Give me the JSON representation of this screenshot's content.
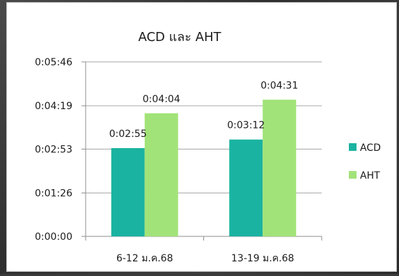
{
  "chart_data": {
    "type": "bar",
    "title": "ACD และ AHT",
    "categories": [
      "6-12 ม.ค.68",
      "13-19 ม.ค.68"
    ],
    "series": [
      {
        "name": "ACD",
        "values": [
          175,
          192
        ],
        "labels": [
          "0:02:55",
          "0:03:12"
        ],
        "color": "#1ab3a1"
      },
      {
        "name": "AHT",
        "values": [
          244,
          271
        ],
        "labels": [
          "0:04:04",
          "0:04:31"
        ],
        "color": "#a1e378"
      }
    ],
    "y_unit": "seconds",
    "ylim": [
      0,
      346
    ],
    "y_ticks": [
      0,
      86,
      173,
      259,
      346
    ],
    "y_tick_labels": [
      "0:00:00",
      "0:01:26",
      "0:02:53",
      "0:04:19",
      "0:05:46"
    ],
    "grid": true,
    "legend": "right"
  }
}
